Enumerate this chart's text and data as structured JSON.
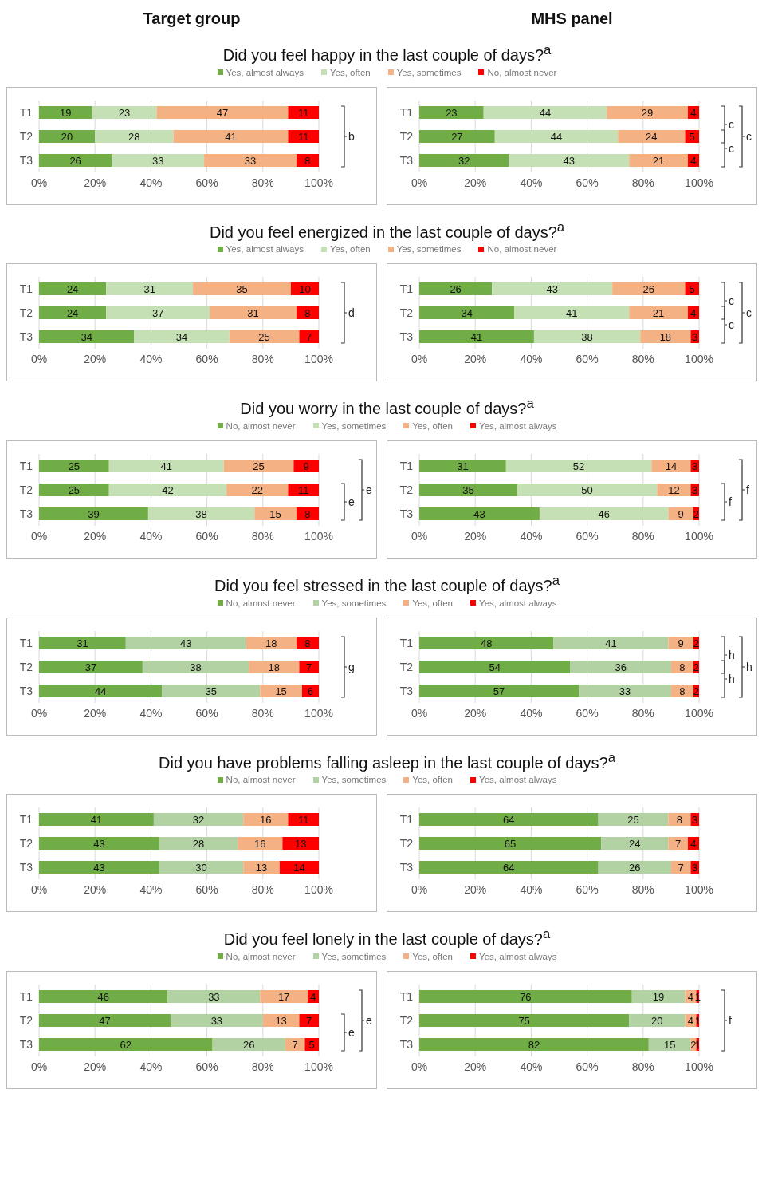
{
  "chart_data": [
    {
      "type": "bar",
      "orientation": "horizontal",
      "stacked": true,
      "subtitle": "Target group",
      "title": "Did you feel happy in the last couple of days?$^{a}$",
      "legend": "top",
      "grid": "x",
      "data_labels": true,
      "categories": [
        "T1",
        "T2",
        "T3"
      ],
      "xlim": [
        0,
        100
      ],
      "xticks": [
        {
          "value": 0,
          "label": "0%"
        },
        {
          "value": 20,
          "label": "20%"
        },
        {
          "value": 40,
          "label": "40%"
        },
        {
          "value": 60,
          "label": "60%"
        },
        {
          "value": 80,
          "label": "80%"
        },
        {
          "value": 100,
          "label": "100%"
        }
      ],
      "annotations": [
        "b"
      ],
      "series": [
        {
          "name": "Yes, almost always",
          "color": "#70ad47",
          "values": [
            19,
            20,
            26
          ]
        },
        {
          "name": "Yes, often",
          "color": "#c5e0b4",
          "values": [
            23,
            28,
            33
          ]
        },
        {
          "name": "Yes, sometimes",
          "color": "#f4b183",
          "values": [
            47,
            41,
            33
          ]
        },
        {
          "name": "No, almost never",
          "color": "#ff0000",
          "values": [
            11,
            11,
            8
          ]
        }
      ]
    },
    {
      "type": "bar",
      "orientation": "horizontal",
      "stacked": true,
      "subtitle": "MHS panel",
      "grid": "x",
      "data_labels": true,
      "categories": [
        "T1",
        "T2",
        "T3"
      ],
      "xlim": [
        0,
        100
      ],
      "xticks": [
        {
          "value": 0,
          "label": "0%"
        },
        {
          "value": 20,
          "label": "20%"
        },
        {
          "value": 40,
          "label": "40%"
        },
        {
          "value": 60,
          "label": "60%"
        },
        {
          "value": 80,
          "label": "80%"
        },
        {
          "value": 100,
          "label": "100%"
        }
      ],
      "annotations": [
        "c",
        "c",
        "c"
      ],
      "series": [
        {
          "color": "#70ad47",
          "values": [
            23,
            27,
            32
          ]
        },
        {
          "color": "#c5e0b4",
          "values": [
            44,
            44,
            43
          ]
        },
        {
          "color": "#f4b183",
          "values": [
            29,
            24,
            21
          ]
        },
        {
          "color": "#ff0000",
          "values": [
            4,
            5,
            4
          ]
        }
      ]
    },
    {
      "type": "bar",
      "orientation": "horizontal",
      "stacked": true,
      "title": "Did you feel energized in the last couple of days?$^{a}$",
      "legend": "top",
      "grid": "x",
      "data_labels": true,
      "categories": [
        "T1",
        "T2",
        "T3"
      ],
      "xlim": [
        0,
        100
      ],
      "xticks": [
        {
          "value": 0,
          "label": "0%"
        },
        {
          "value": 20,
          "label": "20%"
        },
        {
          "value": 40,
          "label": "40%"
        },
        {
          "value": 60,
          "label": "60%"
        },
        {
          "value": 80,
          "label": "80%"
        },
        {
          "value": 100,
          "label": "100%"
        }
      ],
      "annotations": [
        "d"
      ],
      "series": [
        {
          "name": "Yes, almost always",
          "color": "#70ad47",
          "values": [
            24,
            24,
            34
          ]
        },
        {
          "name": "Yes, often",
          "color": "#c5e0b4",
          "values": [
            31,
            37,
            34
          ]
        },
        {
          "name": "Yes, sometimes",
          "color": "#f4b183",
          "values": [
            35,
            31,
            25
          ]
        },
        {
          "name": "No, almost never",
          "color": "#ff0000",
          "values": [
            10,
            8,
            7
          ]
        }
      ]
    },
    {
      "type": "bar",
      "orientation": "horizontal",
      "stacked": true,
      "grid": "x",
      "data_labels": true,
      "categories": [
        "T1",
        "T2",
        "T3"
      ],
      "xlim": [
        0,
        100
      ],
      "xticks": [
        {
          "value": 0,
          "label": "0%"
        },
        {
          "value": 20,
          "label": "20%"
        },
        {
          "value": 40,
          "label": "40%"
        },
        {
          "value": 60,
          "label": "60%"
        },
        {
          "value": 80,
          "label": "80%"
        },
        {
          "value": 100,
          "label": "100%"
        }
      ],
      "annotations": [
        "c",
        "c",
        "c"
      ],
      "series": [
        {
          "color": "#70ad47",
          "values": [
            26,
            34,
            41
          ]
        },
        {
          "color": "#c5e0b4",
          "values": [
            43,
            41,
            38
          ]
        },
        {
          "color": "#f4b183",
          "values": [
            26,
            21,
            18
          ]
        },
        {
          "color": "#ff0000",
          "values": [
            5,
            4,
            3
          ]
        }
      ]
    },
    {
      "type": "bar",
      "orientation": "horizontal",
      "stacked": true,
      "title": "Did you worry in the last couple of days?$^{a}$",
      "legend": "top",
      "grid": "x",
      "data_labels": true,
      "categories": [
        "T1",
        "T2",
        "T3"
      ],
      "xlim": [
        0,
        100
      ],
      "xticks": [
        {
          "value": 0,
          "label": "0%"
        },
        {
          "value": 20,
          "label": "20%"
        },
        {
          "value": 40,
          "label": "40%"
        },
        {
          "value": 60,
          "label": "60%"
        },
        {
          "value": 80,
          "label": "80%"
        },
        {
          "value": 100,
          "label": "100%"
        }
      ],
      "annotations": [
        "e",
        "e"
      ],
      "series": [
        {
          "name": "No, almost never",
          "color": "#70ad47",
          "values": [
            25,
            25,
            39
          ]
        },
        {
          "name": "Yes, sometimes",
          "color": "#c5e0b4",
          "values": [
            41,
            42,
            38
          ]
        },
        {
          "name": "Yes, often",
          "color": "#f4b183",
          "values": [
            25,
            22,
            15
          ]
        },
        {
          "name": "Yes, almost always",
          "color": "#ff0000",
          "values": [
            9,
            11,
            8
          ]
        }
      ]
    },
    {
      "type": "bar",
      "orientation": "horizontal",
      "stacked": true,
      "grid": "x",
      "data_labels": true,
      "categories": [
        "T1",
        "T2",
        "T3"
      ],
      "xlim": [
        0,
        100
      ],
      "xticks": [
        {
          "value": 0,
          "label": "0%"
        },
        {
          "value": 20,
          "label": "20%"
        },
        {
          "value": 40,
          "label": "40%"
        },
        {
          "value": 60,
          "label": "60%"
        },
        {
          "value": 80,
          "label": "80%"
        },
        {
          "value": 100,
          "label": "100%"
        }
      ],
      "annotations": [
        "f",
        "f"
      ],
      "series": [
        {
          "color": "#70ad47",
          "values": [
            31,
            35,
            43
          ]
        },
        {
          "color": "#c5e0b4",
          "values": [
            52,
            50,
            46
          ]
        },
        {
          "color": "#f4b183",
          "values": [
            14,
            12,
            9
          ]
        },
        {
          "color": "#ff0000",
          "values": [
            3,
            3,
            2
          ]
        }
      ]
    },
    {
      "type": "bar",
      "orientation": "horizontal",
      "stacked": true,
      "title": "Did you feel stressed in the last couple of days?$^{a}$",
      "legend": "top",
      "grid": "x",
      "data_labels": true,
      "categories": [
        "T1",
        "T2",
        "T3"
      ],
      "xlim": [
        0,
        100
      ],
      "xticks": [
        {
          "value": 0,
          "label": "0%"
        },
        {
          "value": 20,
          "label": "20%"
        },
        {
          "value": 40,
          "label": "40%"
        },
        {
          "value": 60,
          "label": "60%"
        },
        {
          "value": 80,
          "label": "80%"
        },
        {
          "value": 100,
          "label": "100%"
        }
      ],
      "annotations": [
        "g"
      ],
      "series": [
        {
          "name": "No, almost never",
          "color": "#70ad47",
          "values": [
            31,
            37,
            44
          ]
        },
        {
          "name": "Yes, sometimes",
          "color": "#b2d2a4",
          "values": [
            43,
            38,
            35
          ]
        },
        {
          "name": "Yes, often",
          "color": "#f4b183",
          "values": [
            18,
            18,
            15
          ]
        },
        {
          "name": "Yes, almost always",
          "color": "#ff0000",
          "values": [
            8,
            7,
            6
          ]
        }
      ]
    },
    {
      "type": "bar",
      "orientation": "horizontal",
      "stacked": true,
      "grid": "x",
      "data_labels": true,
      "categories": [
        "T1",
        "T2",
        "T3"
      ],
      "xlim": [
        0,
        100
      ],
      "xticks": [
        {
          "value": 0,
          "label": "0%"
        },
        {
          "value": 20,
          "label": "20%"
        },
        {
          "value": 40,
          "label": "40%"
        },
        {
          "value": 60,
          "label": "60%"
        },
        {
          "value": 80,
          "label": "80%"
        },
        {
          "value": 100,
          "label": "100%"
        }
      ],
      "annotations": [
        "h",
        "h",
        "h"
      ],
      "series": [
        {
          "color": "#70ad47",
          "values": [
            48,
            54,
            57
          ]
        },
        {
          "color": "#b2d2a4",
          "values": [
            41,
            36,
            33
          ]
        },
        {
          "color": "#f4b183",
          "values": [
            9,
            8,
            8
          ]
        },
        {
          "color": "#ff0000",
          "values": [
            2,
            2,
            2
          ]
        }
      ]
    },
    {
      "type": "bar",
      "orientation": "horizontal",
      "stacked": true,
      "title": "Did you have problems falling asleep in the last couple of days?$^{a}$",
      "legend": "top",
      "grid": "x",
      "data_labels": true,
      "categories": [
        "T1",
        "T2",
        "T3"
      ],
      "xlim": [
        0,
        100
      ],
      "xticks": [
        {
          "value": 0,
          "label": "0%"
        },
        {
          "value": 20,
          "label": "20%"
        },
        {
          "value": 40,
          "label": "40%"
        },
        {
          "value": 60,
          "label": "60%"
        },
        {
          "value": 80,
          "label": "80%"
        },
        {
          "value": 100,
          "label": "100%"
        }
      ],
      "series": [
        {
          "name": "No, almost never",
          "color": "#70ad47",
          "values": [
            41,
            43,
            43
          ]
        },
        {
          "name": "Yes, sometimes",
          "color": "#b2d2a4",
          "values": [
            32,
            28,
            30
          ]
        },
        {
          "name": "Yes, often",
          "color": "#f4b183",
          "values": [
            16,
            16,
            13
          ]
        },
        {
          "name": "Yes, almost always",
          "color": "#ff0000",
          "values": [
            11,
            13,
            14
          ]
        }
      ]
    },
    {
      "type": "bar",
      "orientation": "horizontal",
      "stacked": true,
      "grid": "x",
      "data_labels": true,
      "categories": [
        "T1",
        "T2",
        "T3"
      ],
      "xlim": [
        0,
        100
      ],
      "xticks": [
        {
          "value": 0,
          "label": "0%"
        },
        {
          "value": 20,
          "label": "20%"
        },
        {
          "value": 40,
          "label": "40%"
        },
        {
          "value": 60,
          "label": "60%"
        },
        {
          "value": 80,
          "label": "80%"
        },
        {
          "value": 100,
          "label": "100%"
        }
      ],
      "series": [
        {
          "color": "#70ad47",
          "values": [
            64,
            65,
            64
          ]
        },
        {
          "color": "#b2d2a4",
          "values": [
            25,
            24,
            26
          ]
        },
        {
          "color": "#f4b183",
          "values": [
            8,
            7,
            7
          ]
        },
        {
          "color": "#ff0000",
          "values": [
            3,
            4,
            3
          ]
        }
      ]
    },
    {
      "type": "bar",
      "orientation": "horizontal",
      "stacked": true,
      "title": "Did you feel lonely in the last couple of days?$^{a}$",
      "legend": "top",
      "grid": "x",
      "data_labels": true,
      "categories": [
        "T1",
        "T2",
        "T3"
      ],
      "xlim": [
        0,
        100
      ],
      "xticks": [
        {
          "value": 0,
          "label": "0%"
        },
        {
          "value": 20,
          "label": "20%"
        },
        {
          "value": 40,
          "label": "40%"
        },
        {
          "value": 60,
          "label": "60%"
        },
        {
          "value": 80,
          "label": "80%"
        },
        {
          "value": 100,
          "label": "100%"
        }
      ],
      "annotations": [
        "e",
        "e"
      ],
      "series": [
        {
          "name": "No, almost never",
          "color": "#70ad47",
          "values": [
            46,
            47,
            62
          ]
        },
        {
          "name": "Yes, sometimes",
          "color": "#b2d2a4",
          "values": [
            33,
            33,
            26
          ]
        },
        {
          "name": "Yes, often",
          "color": "#f4b183",
          "values": [
            17,
            13,
            7
          ]
        },
        {
          "name": "Yes, almost always",
          "color": "#ff0000",
          "values": [
            4,
            7,
            5
          ]
        }
      ]
    },
    {
      "type": "bar",
      "orientation": "horizontal",
      "stacked": true,
      "grid": "x",
      "data_labels": true,
      "categories": [
        "T1",
        "T2",
        "T3"
      ],
      "xlim": [
        0,
        100
      ],
      "xticks": [
        {
          "value": 0,
          "label": "0%"
        },
        {
          "value": 20,
          "label": "20%"
        },
        {
          "value": 40,
          "label": "40%"
        },
        {
          "value": 60,
          "label": "60%"
        },
        {
          "value": 80,
          "label": "80%"
        },
        {
          "value": 100,
          "label": "100%"
        }
      ],
      "annotations": [
        "f"
      ],
      "series": [
        {
          "color": "#70ad47",
          "values": [
            76,
            75,
            82
          ]
        },
        {
          "color": "#b2d2a4",
          "values": [
            19,
            20,
            15
          ]
        },
        {
          "color": "#f4b183",
          "values": [
            4,
            4,
            2
          ]
        },
        {
          "color": "#ff0000",
          "values": [
            1,
            1,
            1
          ]
        }
      ]
    }
  ]
}
